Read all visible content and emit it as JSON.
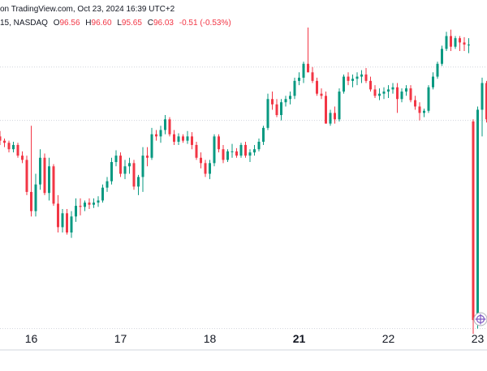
{
  "header": {
    "source_line": "on TradingView.com, Oct 23, 2024 16:39 UTC+2",
    "symbol_fragment": "15, NASDAQ",
    "open_label": "O",
    "open_value": "96.56",
    "high_label": "H",
    "high_value": "96.60",
    "low_label": "L",
    "low_value": "95.65",
    "close_label": "C",
    "close_value": "96.03",
    "change": "-0.51 (-0.53%)"
  },
  "colors": {
    "up": "#089981",
    "down": "#f23645",
    "grid": "#d1d4dc",
    "axis": "#d1d4dc"
  },
  "icons": {
    "target": "crosshair-target-icon"
  },
  "chart_data": {
    "type": "candlestick",
    "title": "",
    "xlabel": "",
    "ylabel": "",
    "x_tick_labels": [
      {
        "label": "16",
        "index": 7,
        "bold": false
      },
      {
        "label": "17",
        "index": 27,
        "bold": false
      },
      {
        "label": "18",
        "index": 47,
        "bold": false
      },
      {
        "label": "21",
        "index": 67,
        "bold": true
      },
      {
        "label": "22",
        "index": 87,
        "bold": false
      },
      {
        "label": "23",
        "index": 107,
        "bold": false
      }
    ],
    "ylim": [
      95.5,
      98.55
    ],
    "reference_levels": [
      98.15,
      97.65,
      95.7
    ],
    "candles": [
      [
        97.5,
        97.55,
        97.42,
        97.46
      ],
      [
        97.46,
        97.48,
        97.4,
        97.44
      ],
      [
        97.44,
        97.46,
        97.35,
        97.38
      ],
      [
        97.38,
        97.45,
        97.35,
        97.42
      ],
      [
        97.42,
        97.44,
        97.3,
        97.32
      ],
      [
        97.32,
        97.36,
        97.25,
        97.28
      ],
      [
        97.28,
        97.32,
        96.95,
        96.98
      ],
      [
        96.98,
        97.6,
        96.75,
        96.8
      ],
      [
        96.8,
        97.15,
        96.75,
        97.05
      ],
      [
        97.05,
        97.38,
        97.0,
        97.3
      ],
      [
        97.3,
        97.34,
        96.95,
        96.97
      ],
      [
        96.97,
        97.3,
        96.9,
        97.22
      ],
      [
        97.22,
        97.24,
        96.85,
        96.87
      ],
      [
        96.87,
        96.95,
        96.6,
        96.65
      ],
      [
        96.65,
        96.82,
        96.6,
        96.78
      ],
      [
        96.78,
        96.82,
        96.58,
        96.6
      ],
      [
        96.6,
        96.8,
        96.55,
        96.75
      ],
      [
        96.75,
        96.92,
        96.7,
        96.85
      ],
      [
        96.85,
        96.92,
        96.76,
        96.84
      ],
      [
        96.84,
        96.9,
        96.8,
        96.88
      ],
      [
        96.88,
        96.92,
        96.82,
        96.86
      ],
      [
        96.86,
        96.92,
        96.83,
        96.88
      ],
      [
        96.88,
        96.94,
        96.84,
        96.9
      ],
      [
        96.9,
        97.05,
        96.88,
        97.02
      ],
      [
        97.02,
        97.12,
        96.98,
        97.08
      ],
      [
        97.08,
        97.3,
        97.05,
        97.26
      ],
      [
        97.26,
        97.37,
        97.22,
        97.32
      ],
      [
        97.32,
        97.35,
        97.12,
        97.15
      ],
      [
        97.15,
        97.28,
        97.1,
        97.22
      ],
      [
        97.22,
        97.3,
        97.15,
        97.25
      ],
      [
        97.25,
        97.28,
        97.0,
        97.03
      ],
      [
        97.03,
        97.14,
        96.95,
        97.12
      ],
      [
        97.12,
        97.4,
        96.98,
        97.32
      ],
      [
        97.32,
        97.4,
        97.22,
        97.3
      ],
      [
        97.3,
        97.58,
        97.28,
        97.52
      ],
      [
        97.52,
        97.56,
        97.46,
        97.5
      ],
      [
        97.5,
        97.6,
        97.44,
        97.56
      ],
      [
        97.56,
        97.7,
        97.52,
        97.66
      ],
      [
        97.66,
        97.68,
        97.5,
        97.52
      ],
      [
        97.52,
        97.56,
        97.42,
        97.45
      ],
      [
        97.45,
        97.53,
        97.42,
        97.5
      ],
      [
        97.5,
        97.52,
        97.44,
        97.46
      ],
      [
        97.46,
        97.55,
        97.43,
        97.5
      ],
      [
        97.5,
        97.54,
        97.38,
        97.42
      ],
      [
        97.42,
        97.45,
        97.28,
        97.3
      ],
      [
        97.3,
        97.35,
        97.2,
        97.25
      ],
      [
        97.25,
        97.28,
        97.12,
        97.15
      ],
      [
        97.15,
        97.28,
        97.1,
        97.25
      ],
      [
        97.25,
        97.52,
        97.22,
        97.5
      ],
      [
        97.5,
        97.52,
        97.35,
        97.38
      ],
      [
        97.38,
        97.42,
        97.25,
        97.28
      ],
      [
        97.28,
        97.38,
        97.26,
        97.36
      ],
      [
        97.36,
        97.43,
        97.3,
        97.36
      ],
      [
        97.36,
        97.39,
        97.3,
        97.32
      ],
      [
        97.32,
        97.44,
        97.3,
        97.42
      ],
      [
        97.42,
        97.45,
        97.3,
        97.32
      ],
      [
        97.32,
        97.38,
        97.26,
        97.35
      ],
      [
        97.35,
        97.42,
        97.32,
        97.38
      ],
      [
        97.38,
        97.48,
        97.36,
        97.45
      ],
      [
        97.45,
        97.6,
        97.42,
        97.58
      ],
      [
        97.58,
        97.9,
        97.56,
        97.85
      ],
      [
        97.85,
        97.92,
        97.75,
        97.8
      ],
      [
        97.8,
        97.85,
        97.68,
        97.7
      ],
      [
        97.7,
        97.85,
        97.65,
        97.82
      ],
      [
        97.82,
        97.88,
        97.78,
        97.85
      ],
      [
        97.85,
        97.92,
        97.8,
        97.88
      ],
      [
        97.88,
        98.05,
        97.85,
        98.02
      ],
      [
        98.02,
        98.1,
        97.98,
        98.05
      ],
      [
        98.05,
        98.2,
        98.0,
        98.18
      ],
      [
        98.18,
        98.52,
        98.1,
        98.1
      ],
      [
        98.1,
        98.15,
        98.0,
        98.02
      ],
      [
        98.02,
        98.05,
        97.88,
        97.9
      ],
      [
        97.9,
        97.95,
        97.85,
        97.88
      ],
      [
        97.88,
        97.92,
        97.62,
        97.62
      ],
      [
        97.62,
        97.75,
        97.6,
        97.72
      ],
      [
        97.72,
        97.78,
        97.62,
        97.66
      ],
      [
        97.66,
        97.95,
        97.64,
        97.92
      ],
      [
        97.92,
        98.08,
        97.9,
        98.06
      ],
      [
        98.06,
        98.1,
        97.98,
        98.02
      ],
      [
        98.02,
        98.08,
        97.96,
        98.04
      ],
      [
        98.04,
        98.1,
        97.98,
        98.06
      ],
      [
        98.06,
        98.12,
        98.0,
        98.08
      ],
      [
        98.08,
        98.14,
        98.0,
        98.02
      ],
      [
        98.02,
        98.06,
        97.92,
        97.94
      ],
      [
        97.94,
        97.98,
        97.86,
        97.88
      ],
      [
        97.88,
        97.95,
        97.84,
        97.9
      ],
      [
        97.9,
        97.96,
        97.85,
        97.92
      ],
      [
        97.92,
        97.98,
        97.86,
        97.94
      ],
      [
        97.94,
        98.0,
        97.9,
        97.96
      ],
      [
        97.96,
        98.0,
        97.72,
        97.85
      ],
      [
        97.85,
        97.95,
        97.82,
        97.92
      ],
      [
        97.92,
        97.98,
        97.88,
        97.95
      ],
      [
        97.95,
        97.98,
        97.82,
        97.84
      ],
      [
        97.84,
        97.88,
        97.75,
        97.78
      ],
      [
        97.78,
        97.82,
        97.65,
        97.72
      ],
      [
        97.72,
        97.76,
        97.68,
        97.74
      ],
      [
        97.74,
        97.98,
        97.72,
        97.96
      ],
      [
        97.96,
        98.1,
        97.94,
        98.06
      ],
      [
        98.06,
        98.2,
        98.04,
        98.18
      ],
      [
        98.18,
        98.35,
        98.16,
        98.32
      ],
      [
        98.32,
        98.48,
        98.3,
        98.44
      ],
      [
        98.44,
        98.5,
        98.3,
        98.34
      ],
      [
        98.34,
        98.44,
        98.32,
        98.42
      ],
      [
        98.42,
        98.44,
        98.3,
        98.38
      ],
      [
        98.38,
        98.43,
        98.3,
        98.36
      ],
      [
        98.36,
        98.42,
        98.28,
        98.36
      ],
      [
        97.64,
        97.66,
        95.65,
        95.78
      ],
      [
        95.78,
        97.78,
        95.7,
        97.75
      ],
      [
        97.75,
        98.05,
        97.5,
        98.0
      ],
      [
        98.0,
        98.02,
        97.63,
        97.66
      ]
    ]
  }
}
